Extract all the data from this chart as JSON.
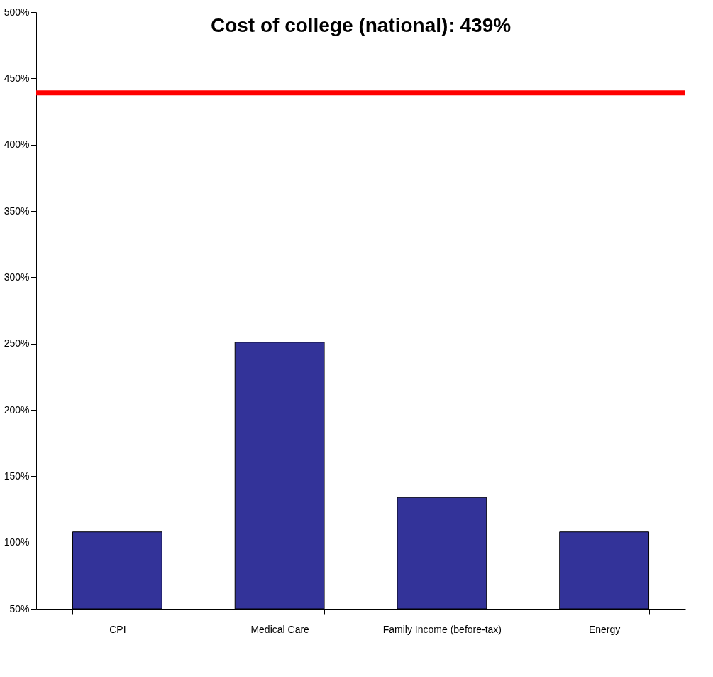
{
  "chart_data": {
    "type": "bar",
    "categories": [
      "CPI",
      "Medical Care",
      "Family Income (before-tax)",
      "Energy"
    ],
    "series": [
      {
        "color": "#333399",
        "values": [
          108,
          251,
          134,
          108
        ]
      }
    ],
    "ylim": [
      50,
      500
    ],
    "yticks": [
      {
        "value": 50,
        "label": "50%"
      },
      {
        "value": 100,
        "label": "100%"
      },
      {
        "value": 150,
        "label": "150%"
      },
      {
        "value": 200,
        "label": "200%"
      },
      {
        "value": 250,
        "label": "250%"
      },
      {
        "value": 300,
        "label": "300%"
      },
      {
        "value": 350,
        "label": "350%"
      },
      {
        "value": 400,
        "label": "400%"
      },
      {
        "value": 450,
        "label": "450%"
      },
      {
        "value": 500,
        "label": "500%"
      }
    ],
    "ref_lines": [
      {
        "axis": "y",
        "value": 439,
        "color": "#ff0000",
        "line_style": "solid"
      }
    ],
    "annotations": [
      "Cost of college (national): 439%"
    ],
    "grid": false
  }
}
